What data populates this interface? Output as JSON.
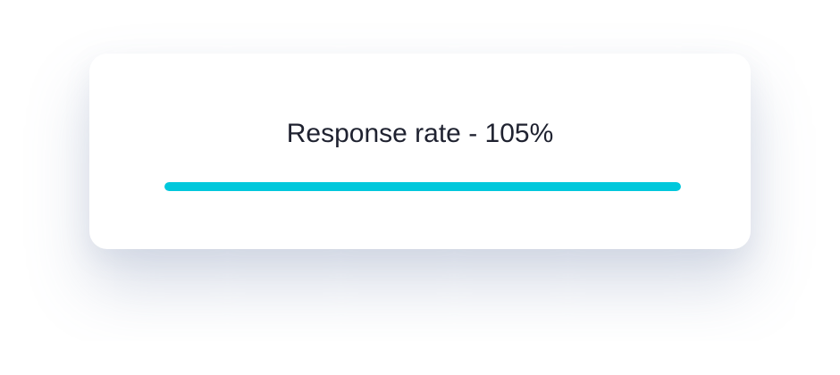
{
  "card": {
    "label": "Response rate",
    "separator": " - ",
    "value_text": "105%",
    "progress_percent": 105
  },
  "colors": {
    "bar_fill": "#00c8dc",
    "text": "#1f2230",
    "background": "#ffffff"
  }
}
